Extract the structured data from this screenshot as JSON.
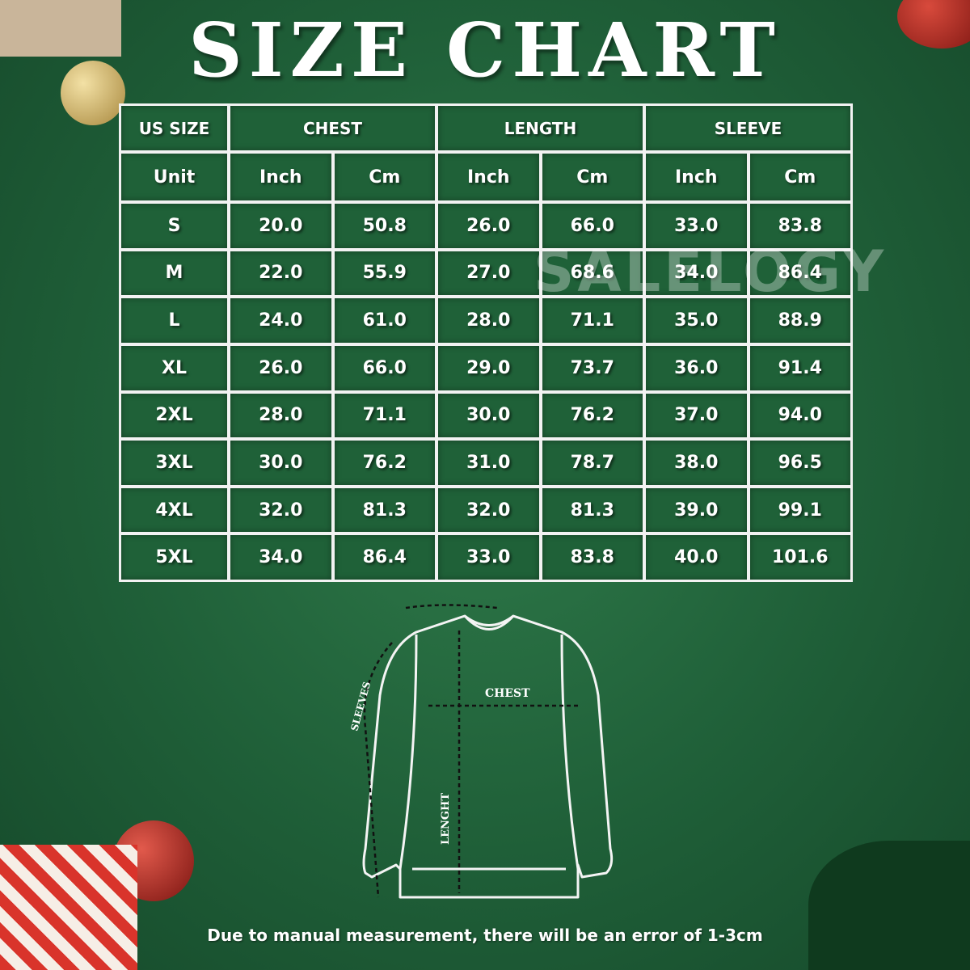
{
  "title": "SIZE CHART",
  "watermark": "SALELOGY",
  "table": {
    "group_headers": [
      "US SIZE",
      "CHEST",
      "LENGTH",
      "SLEEVE"
    ],
    "unit_headers": [
      "Unit",
      "Inch",
      "Cm",
      "Inch",
      "Cm",
      "Inch",
      "Cm"
    ],
    "rows": [
      [
        "S",
        "20.0",
        "50.8",
        "26.0",
        "66.0",
        "33.0",
        "83.8"
      ],
      [
        "M",
        "22.0",
        "55.9",
        "27.0",
        "68.6",
        "34.0",
        "86.4"
      ],
      [
        "L",
        "24.0",
        "61.0",
        "28.0",
        "71.1",
        "35.0",
        "88.9"
      ],
      [
        "XL",
        "26.0",
        "66.0",
        "29.0",
        "73.7",
        "36.0",
        "91.4"
      ],
      [
        "2XL",
        "28.0",
        "71.1",
        "30.0",
        "76.2",
        "37.0",
        "94.0"
      ],
      [
        "3XL",
        "30.0",
        "76.2",
        "31.0",
        "78.7",
        "38.0",
        "96.5"
      ],
      [
        "4XL",
        "32.0",
        "81.3",
        "32.0",
        "81.3",
        "39.0",
        "99.1"
      ],
      [
        "5XL",
        "34.0",
        "86.4",
        "33.0",
        "83.8",
        "40.0",
        "101.6"
      ]
    ]
  },
  "diagram": {
    "chest_label": "CHEST",
    "length_label": "LENGHT",
    "sleeves_label": "SLEEVES"
  },
  "note": "Due to manual measurement, there will be an error of 1-3cm",
  "colors": {
    "background": "#1f5f38",
    "cell": "#1f6138",
    "grid": "#f2f2f2"
  }
}
